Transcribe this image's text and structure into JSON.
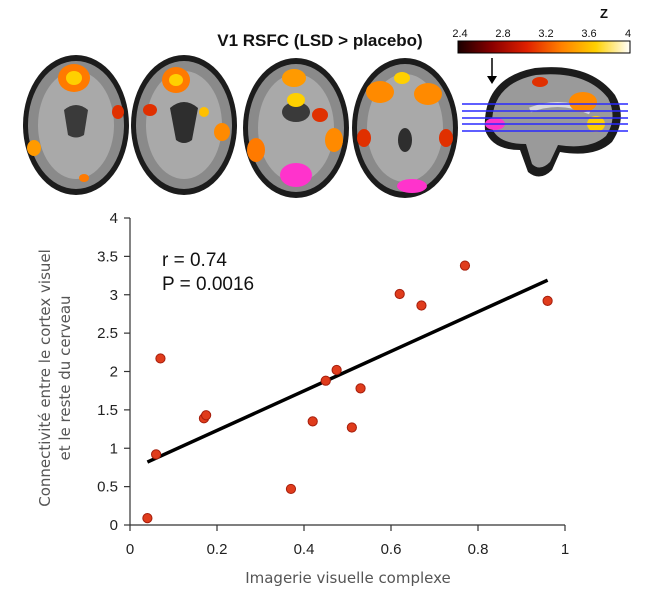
{
  "figure": {
    "title": "V1 RSFC (LSD > placebo)",
    "colorbar": {
      "label": "Z",
      "ticks": [
        "2.4",
        "2.8",
        "3.2",
        "3.6",
        "4"
      ],
      "colors": [
        "#1a0000",
        "#8b0000",
        "#e02000",
        "#ff8000",
        "#ffd000",
        "#ffffff"
      ]
    }
  },
  "chart_data": {
    "type": "scatter",
    "xlabel": "Imagerie visuelle complexe",
    "ylabel_lines": [
      "Connectivité entre le cortex visuel",
      "et le reste du cerveau"
    ],
    "xlim": [
      0,
      1
    ],
    "ylim": [
      0,
      4
    ],
    "xticks": [
      "0",
      "0.2",
      "0.4",
      "0.6",
      "0.8",
      "1"
    ],
    "yticks": [
      "0",
      "0.5",
      "1",
      "1.5",
      "2",
      "2.5",
      "3",
      "3.5",
      "4"
    ],
    "stats": {
      "r": "r = 0.74",
      "p": "P = 0.0016"
    },
    "points": [
      {
        "x": 0.04,
        "y": 0.09
      },
      {
        "x": 0.06,
        "y": 0.92
      },
      {
        "x": 0.07,
        "y": 2.17
      },
      {
        "x": 0.17,
        "y": 1.39
      },
      {
        "x": 0.175,
        "y": 1.43
      },
      {
        "x": 0.37,
        "y": 0.47
      },
      {
        "x": 0.42,
        "y": 1.35
      },
      {
        "x": 0.45,
        "y": 1.88
      },
      {
        "x": 0.475,
        "y": 2.02
      },
      {
        "x": 0.51,
        "y": 1.27
      },
      {
        "x": 0.53,
        "y": 1.78
      },
      {
        "x": 0.62,
        "y": 3.01
      },
      {
        "x": 0.67,
        "y": 2.86
      },
      {
        "x": 0.77,
        "y": 3.38
      },
      {
        "x": 0.96,
        "y": 2.92
      }
    ],
    "fit_line": {
      "x": [
        0.04,
        0.96
      ],
      "y": [
        0.82,
        3.19
      ]
    },
    "colors": {
      "point": "#e03c1c",
      "point_edge": "#a51e0c",
      "line": "#000000"
    }
  }
}
